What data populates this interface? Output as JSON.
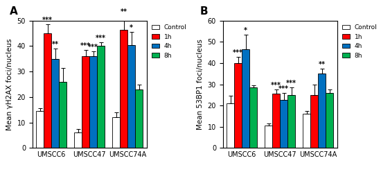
{
  "chart_data": [
    {
      "type": "bar",
      "title": "A",
      "y_label": "Mean γH2AX foci/nucleus",
      "categories": [
        "UMSCC6",
        "UMSCC47",
        "UMSCC74A"
      ],
      "series": [
        {
          "name": "Control",
          "color": "#ffffff",
          "values": [
            14.5,
            6,
            12
          ],
          "errors": [
            1.2,
            1.5,
            2
          ],
          "annotations": [
            null,
            null,
            null
          ]
        },
        {
          "name": "1h",
          "color": "#ff0000",
          "values": [
            45,
            36,
            46.5
          ],
          "errors": [
            3.5,
            2.5,
            5.5
          ],
          "annotations": [
            "***",
            "***",
            "**"
          ]
        },
        {
          "name": "4h",
          "color": "#0070c0",
          "values": [
            35,
            36,
            40.5
          ],
          "errors": [
            4,
            2,
            5
          ],
          "annotations": [
            "**",
            "***",
            "*"
          ]
        },
        {
          "name": "8h",
          "color": "#00b050",
          "values": [
            26,
            40,
            23
          ],
          "errors": [
            5.5,
            1.5,
            2
          ],
          "annotations": [
            null,
            "***",
            null
          ]
        }
      ],
      "ylim": [
        0,
        50
      ],
      "yticks": [
        0,
        10,
        20,
        30,
        40,
        50
      ],
      "legend": "right"
    },
    {
      "type": "bar",
      "title": "B",
      "y_label": "Mean 53BP1 foci/nucleus",
      "categories": [
        "UMSCC6",
        "UMSCC47",
        "UMSCC74A"
      ],
      "series": [
        {
          "name": "Control",
          "color": "#ffffff",
          "values": [
            21,
            10.5,
            16
          ],
          "errors": [
            3.5,
            1,
            1.5
          ],
          "annotations": [
            null,
            null,
            null
          ]
        },
        {
          "name": "1h",
          "color": "#ff0000",
          "values": [
            40,
            25.5,
            25
          ],
          "errors": [
            3,
            2,
            5
          ],
          "annotations": [
            "***",
            "***",
            null
          ]
        },
        {
          "name": "4h",
          "color": "#0070c0",
          "values": [
            46.5,
            22.5,
            35
          ],
          "errors": [
            7,
            3.5,
            2.5
          ],
          "annotations": [
            "*",
            "***",
            "**"
          ]
        },
        {
          "name": "8h",
          "color": "#00b050",
          "values": [
            28.5,
            25,
            26
          ],
          "errors": [
            1,
            3.5,
            1.5
          ],
          "annotations": [
            null,
            "***",
            null
          ]
        }
      ],
      "ylim": [
        0,
        60
      ],
      "yticks": [
        0,
        10,
        20,
        30,
        40,
        50,
        60
      ],
      "legend": "right"
    }
  ]
}
